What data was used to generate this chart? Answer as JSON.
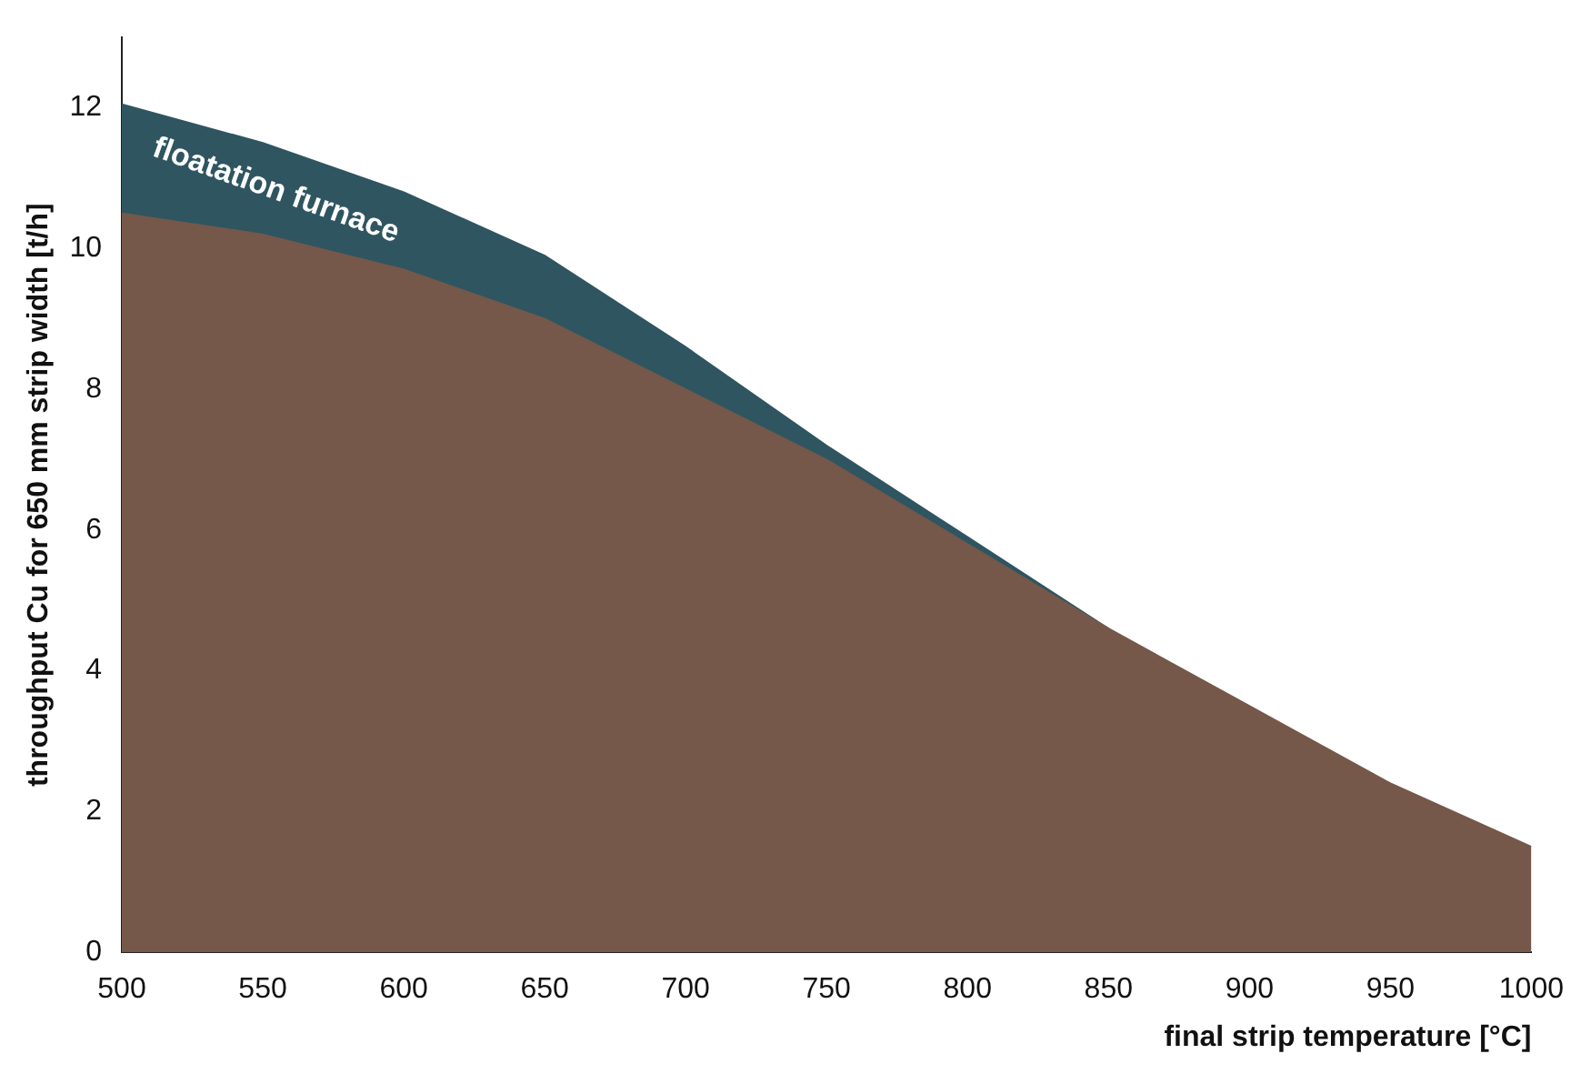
{
  "chart_data": {
    "type": "area",
    "xlabel": "final strip temperature [°C]",
    "ylabel": "throughput Cu for 650 mm strip width [t/h]",
    "x": [
      500,
      550,
      600,
      650,
      700,
      750,
      800,
      850,
      900,
      950,
      1000
    ],
    "series": [
      {
        "name": "floatation furnace",
        "color": "#2f5561",
        "values": [
          12.05,
          11.5,
          10.8,
          9.9,
          8.6,
          7.2,
          5.9,
          4.6,
          null,
          null,
          null
        ]
      },
      {
        "color": "#75584a",
        "values": [
          10.5,
          10.2,
          9.7,
          9.0,
          8.0,
          7.0,
          5.8,
          4.6,
          3.5,
          2.4,
          1.5
        ]
      }
    ],
    "xlim": [
      500,
      1000
    ],
    "xticks": [
      500,
      550,
      600,
      650,
      700,
      750,
      800,
      850,
      900,
      950,
      1000
    ],
    "ylim": [
      0,
      13
    ],
    "yticks": [
      0,
      2,
      4,
      6,
      8,
      10,
      12
    ],
    "grid": false,
    "legend": false
  }
}
